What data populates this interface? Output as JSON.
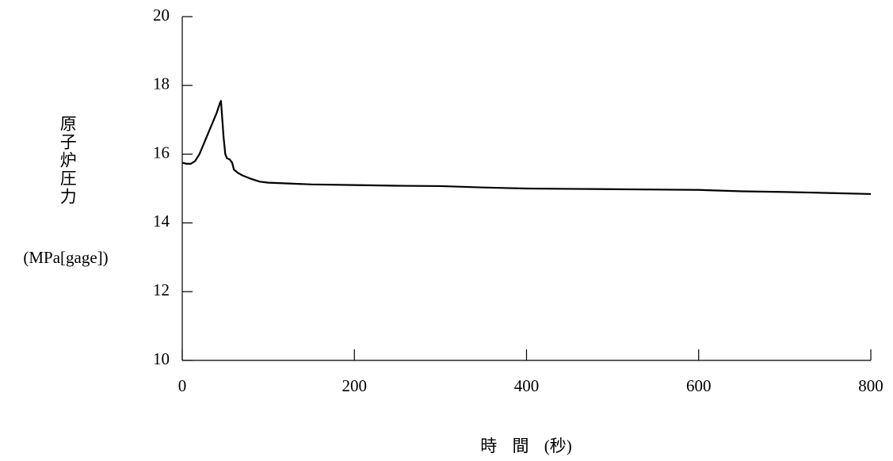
{
  "chart_data": {
    "type": "line",
    "y_label": "原子炉圧力",
    "y_unit": "(MPa[gage])",
    "x_label": "時 間 (秒)",
    "x": [
      0,
      5,
      10,
      15,
      20,
      25,
      30,
      35,
      40,
      44,
      45,
      46,
      48,
      50,
      52,
      55,
      58,
      60,
      65,
      70,
      80,
      90,
      100,
      150,
      200,
      250,
      300,
      350,
      400,
      450,
      500,
      550,
      600,
      650,
      700,
      750,
      800
    ],
    "series": [
      {
        "color": "#000000",
        "values": [
          15.75,
          15.72,
          15.72,
          15.8,
          16.0,
          16.3,
          16.6,
          16.9,
          17.2,
          17.5,
          17.55,
          17.2,
          16.5,
          16.0,
          15.88,
          15.85,
          15.75,
          15.55,
          15.45,
          15.38,
          15.28,
          15.2,
          15.17,
          15.12,
          15.1,
          15.08,
          15.07,
          15.03,
          15.0,
          14.99,
          14.98,
          14.97,
          14.96,
          14.92,
          14.9,
          14.87,
          14.84
        ]
      }
    ],
    "xlim": [
      0,
      800
    ],
    "xticks": [
      0,
      200,
      400,
      600,
      800
    ],
    "ylim": [
      10,
      20
    ],
    "yticks": [
      10,
      12,
      14,
      16,
      18,
      20
    ]
  }
}
